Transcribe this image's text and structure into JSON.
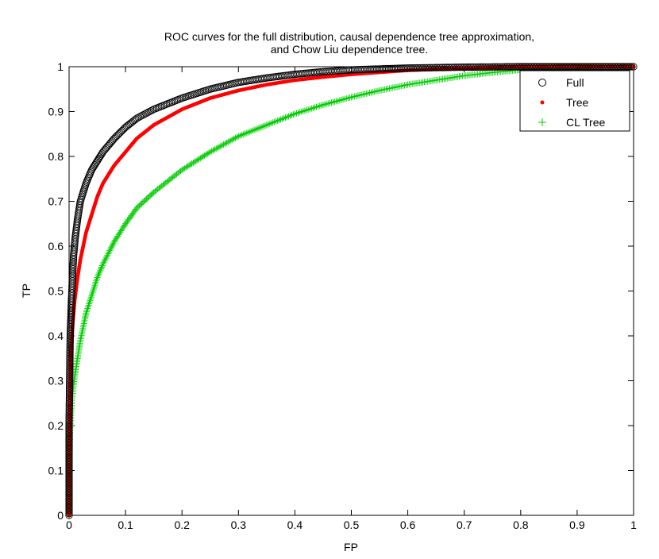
{
  "chart_data": {
    "type": "scatter",
    "title_lines": [
      "ROC curves for the full distribution, causal dependence tree approximation,",
      "and Chow Liu dependence tree."
    ],
    "xlabel": "FP",
    "ylabel": "TP",
    "xlim": [
      0,
      1
    ],
    "ylim": [
      0,
      1
    ],
    "xticks": [
      "0",
      "0.1",
      "0.2",
      "0.3",
      "0.4",
      "0.5",
      "0.6",
      "0.7",
      "0.8",
      "0.9",
      "1"
    ],
    "yticks": [
      "0",
      "0.1",
      "0.2",
      "0.3",
      "0.4",
      "0.5",
      "0.6",
      "0.7",
      "0.8",
      "0.9",
      "1"
    ],
    "grid": false,
    "legend": {
      "placement": "top-right",
      "entries": [
        "Full",
        "Tree",
        "CL Tree"
      ]
    },
    "series": [
      {
        "name": "Full",
        "marker": "circle",
        "color": "#000000",
        "x": [
          0,
          0,
          0.002,
          0.004,
          0.006,
          0.008,
          0.011,
          0.015,
          0.02,
          0.03,
          0.04,
          0.05,
          0.06,
          0.08,
          0.1,
          0.12,
          0.15,
          0.2,
          0.25,
          0.3,
          0.35,
          0.4,
          0.45,
          0.5,
          0.6,
          0.7,
          0.8,
          0.85,
          0.9,
          1.0
        ],
        "y": [
          0,
          0.2,
          0.4,
          0.47,
          0.53,
          0.58,
          0.62,
          0.66,
          0.7,
          0.74,
          0.77,
          0.79,
          0.81,
          0.84,
          0.865,
          0.885,
          0.905,
          0.93,
          0.95,
          0.965,
          0.975,
          0.983,
          0.989,
          0.993,
          0.997,
          0.999,
          1.0,
          1.0,
          1.0,
          1.0
        ]
      },
      {
        "name": "Tree",
        "marker": "dot",
        "color": "#ff0000",
        "x": [
          0,
          0,
          0.002,
          0.004,
          0.006,
          0.01,
          0.015,
          0.02,
          0.03,
          0.04,
          0.05,
          0.06,
          0.08,
          0.1,
          0.12,
          0.15,
          0.2,
          0.25,
          0.3,
          0.35,
          0.4,
          0.45,
          0.5,
          0.6,
          0.7,
          0.8,
          0.9,
          1.0
        ],
        "y": [
          0,
          0.15,
          0.3,
          0.37,
          0.42,
          0.48,
          0.53,
          0.57,
          0.63,
          0.67,
          0.71,
          0.74,
          0.78,
          0.81,
          0.84,
          0.87,
          0.905,
          0.93,
          0.947,
          0.96,
          0.97,
          0.977,
          0.983,
          0.992,
          0.997,
          1.0,
          1.0,
          1.0
        ]
      },
      {
        "name": "CL Tree",
        "marker": "plus",
        "color": "#00cc00",
        "x": [
          0,
          0,
          0.002,
          0.005,
          0.01,
          0.015,
          0.02,
          0.03,
          0.04,
          0.05,
          0.06,
          0.08,
          0.1,
          0.12,
          0.15,
          0.2,
          0.25,
          0.3,
          0.35,
          0.4,
          0.45,
          0.5,
          0.55,
          0.6,
          0.65,
          0.7,
          0.75,
          0.8,
          0.85,
          0.9,
          0.95,
          1.0
        ],
        "y": [
          0,
          0.1,
          0.2,
          0.26,
          0.31,
          0.35,
          0.39,
          0.45,
          0.49,
          0.53,
          0.56,
          0.61,
          0.65,
          0.685,
          0.72,
          0.77,
          0.81,
          0.845,
          0.87,
          0.895,
          0.915,
          0.932,
          0.947,
          0.96,
          0.97,
          0.98,
          0.987,
          0.993,
          0.997,
          1.0,
          1.0,
          1.0
        ]
      }
    ]
  }
}
